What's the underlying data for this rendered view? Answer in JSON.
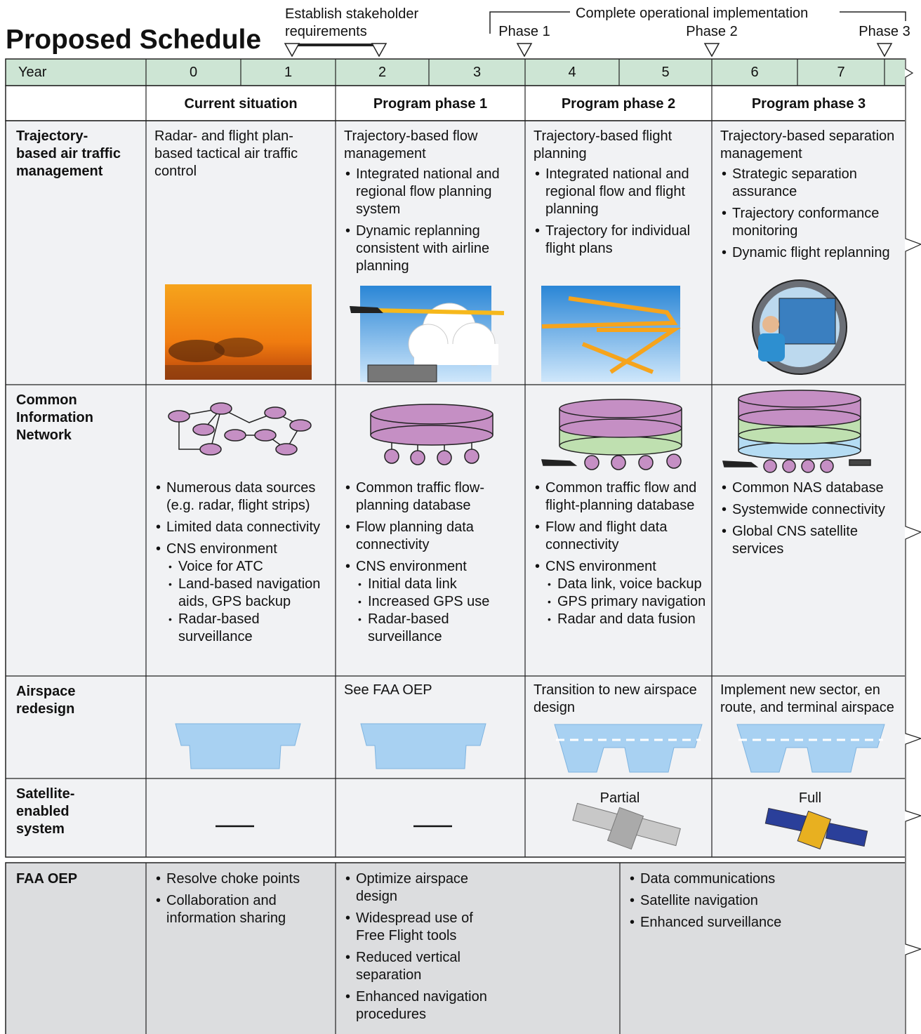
{
  "title": "Proposed Schedule",
  "milestones": {
    "stakeholder": "Establish stakeholder requirements",
    "implementation": "Complete operational implementation",
    "phases": [
      "Phase 1",
      "Phase 2",
      "Phase 3"
    ]
  },
  "timeline": {
    "label": "Year",
    "years": [
      "0",
      "1",
      "2",
      "3",
      "4",
      "5",
      "6",
      "7"
    ]
  },
  "columns": [
    "Current situation",
    "Program phase 1",
    "Program phase 2",
    "Program phase 3"
  ],
  "rows": [
    {
      "label": "Trajectory-based air traffic management",
      "cells": [
        {
          "text": "Radar- and flight plan-based tactical air traffic control"
        },
        {
          "text": "Trajectory-based flow management",
          "items": [
            "Integrated national and regional flow planning system",
            "Dynamic replanning consistent with airline planning"
          ]
        },
        {
          "text": "Trajectory-based flight planning",
          "items": [
            "Integrated national and regional flow and flight planning",
            "Trajectory for individual flight plans"
          ]
        },
        {
          "text": "Trajectory-based separation management",
          "items": [
            "Strategic separation assurance",
            "Trajectory conformance monitoring",
            "Dynamic flight replanning"
          ]
        }
      ]
    },
    {
      "label": "Common Information Network",
      "cells": [
        {
          "items": [
            "Numerous data sources (e.g. radar, flight strips)",
            "Limited data connectivity",
            {
              "text": "CNS environment",
              "items": [
                "Voice for ATC",
                "Land-based navigation aids, GPS backup",
                "Radar-based surveillance"
              ]
            }
          ]
        },
        {
          "items": [
            "Common traffic flow-planning database",
            "Flow planning data connectivity",
            {
              "text": "CNS environment",
              "items": [
                "Initial data link",
                "Increased GPS use",
                "Radar-based surveillance"
              ]
            }
          ]
        },
        {
          "items": [
            "Common traffic flow and flight-planning database",
            "Flow and flight data connectivity",
            {
              "text": "CNS environment",
              "items": [
                "Data link, voice backup",
                "GPS primary navigation",
                "Radar and data fusion"
              ]
            }
          ]
        },
        {
          "items": [
            "Common NAS database",
            "Systemwide connectivity",
            "Global CNS satellite services"
          ]
        }
      ]
    },
    {
      "label": "Airspace redesign",
      "cells": [
        {},
        {
          "text": "See FAA OEP"
        },
        {
          "text": "Transition to new airspace design"
        },
        {
          "text": "Implement new sector, en route, and terminal airspace"
        }
      ]
    },
    {
      "label": "Satellite-enabled system",
      "cells": [
        {},
        {},
        {
          "text": "Partial"
        },
        {
          "text": "Full"
        }
      ]
    }
  ],
  "oep": {
    "label": "FAA OEP",
    "cells": [
      [
        "Resolve choke points",
        "Collaboration and information sharing"
      ],
      [
        "Optimize airspace design",
        "Widespread use of Free Flight tools",
        "Reduced vertical separation",
        "Enhanced navigation procedures"
      ],
      [
        "Data communications",
        "Satellite navigation",
        "Enhanced surveillance"
      ]
    ]
  }
}
